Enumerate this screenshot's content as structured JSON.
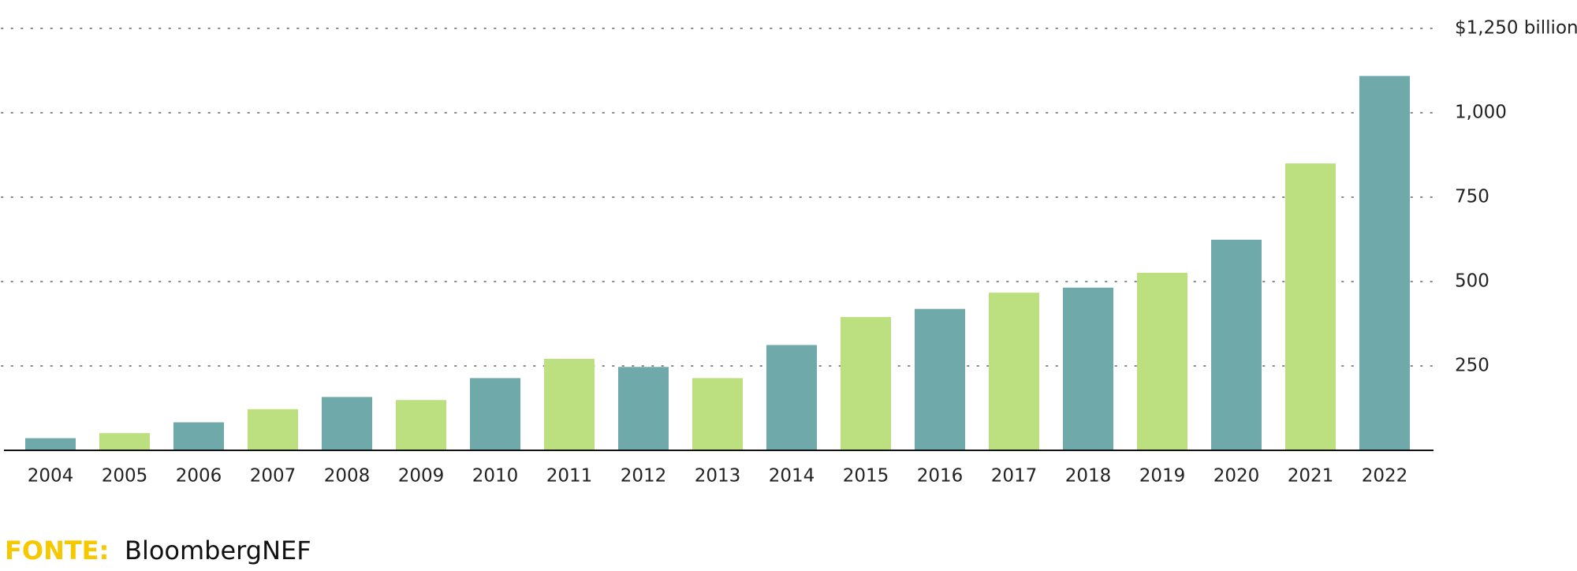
{
  "chart_data": {
    "type": "bar",
    "categories": [
      "2004",
      "2005",
      "2006",
      "2007",
      "2008",
      "2009",
      "2010",
      "2011",
      "2012",
      "2013",
      "2014",
      "2015",
      "2016",
      "2017",
      "2018",
      "2019",
      "2020",
      "2021",
      "2022"
    ],
    "values": [
      36,
      51,
      83,
      122,
      158,
      149,
      214,
      271,
      247,
      214,
      312,
      395,
      419,
      467,
      482,
      526,
      624,
      850,
      1109
    ],
    "colors": [
      "#6fa9a9",
      "#bce07f",
      "#6fa9a9",
      "#bce07f",
      "#6fa9a9",
      "#bce07f",
      "#6fa9a9",
      "#bce07f",
      "#6fa9a9",
      "#bce07f",
      "#6fa9a9",
      "#bce07f",
      "#6fa9a9",
      "#bce07f",
      "#6fa9a9",
      "#bce07f",
      "#6fa9a9",
      "#bce07f",
      "#6fa9a9"
    ],
    "ylim": [
      0,
      1250
    ],
    "yticks": [
      250,
      500,
      750,
      {
        "value": 1000,
        "label": "1,000"
      },
      {
        "value": 1250,
        "label": "$1,250 billion"
      }
    ],
    "grid": true,
    "source_label": "FONTE:",
    "source": "BloombergNEF"
  }
}
